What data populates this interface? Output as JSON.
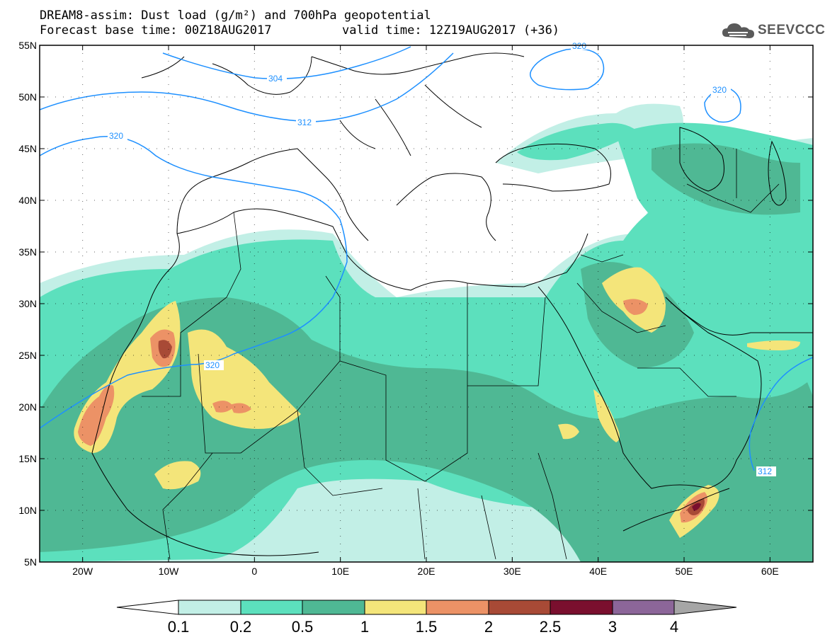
{
  "title_line1": "DREAM8-assim: Dust load (g/m²) and 700hPa geopotential",
  "title_line2": "Forecast base time: 00Z18AUG2017",
  "title_valid": "valid time: 12Z19AUG2017 (+36)",
  "logo_text": "SEEVCCC",
  "colors": {
    "c01": "#c2efe6",
    "c02": "#5ce0bd",
    "c05": "#4fb894",
    "c1": "#f4e57a",
    "c15": "#ec9266",
    "c2": "#a84a36",
    "c25": "#7a0f2e",
    "c3": "#8c6699",
    "c4": "#a6a6a6",
    "contour": "#1e90ff"
  },
  "map": {
    "lon_ticks": [
      "20W",
      "10W",
      "0",
      "10E",
      "20E",
      "30E",
      "40E",
      "50E",
      "60E"
    ],
    "lat_ticks": [
      "55N",
      "50N",
      "45N",
      "40N",
      "35N",
      "30N",
      "25N",
      "20N",
      "15N",
      "10N",
      "5N"
    ],
    "contour_labels": [
      "304",
      "312",
      "320",
      "320",
      "320",
      "312",
      "320"
    ]
  },
  "colorbar": {
    "labels": [
      "0.1",
      "0.2",
      "0.5",
      "1",
      "1.5",
      "2",
      "2.5",
      "3",
      "4"
    ]
  }
}
